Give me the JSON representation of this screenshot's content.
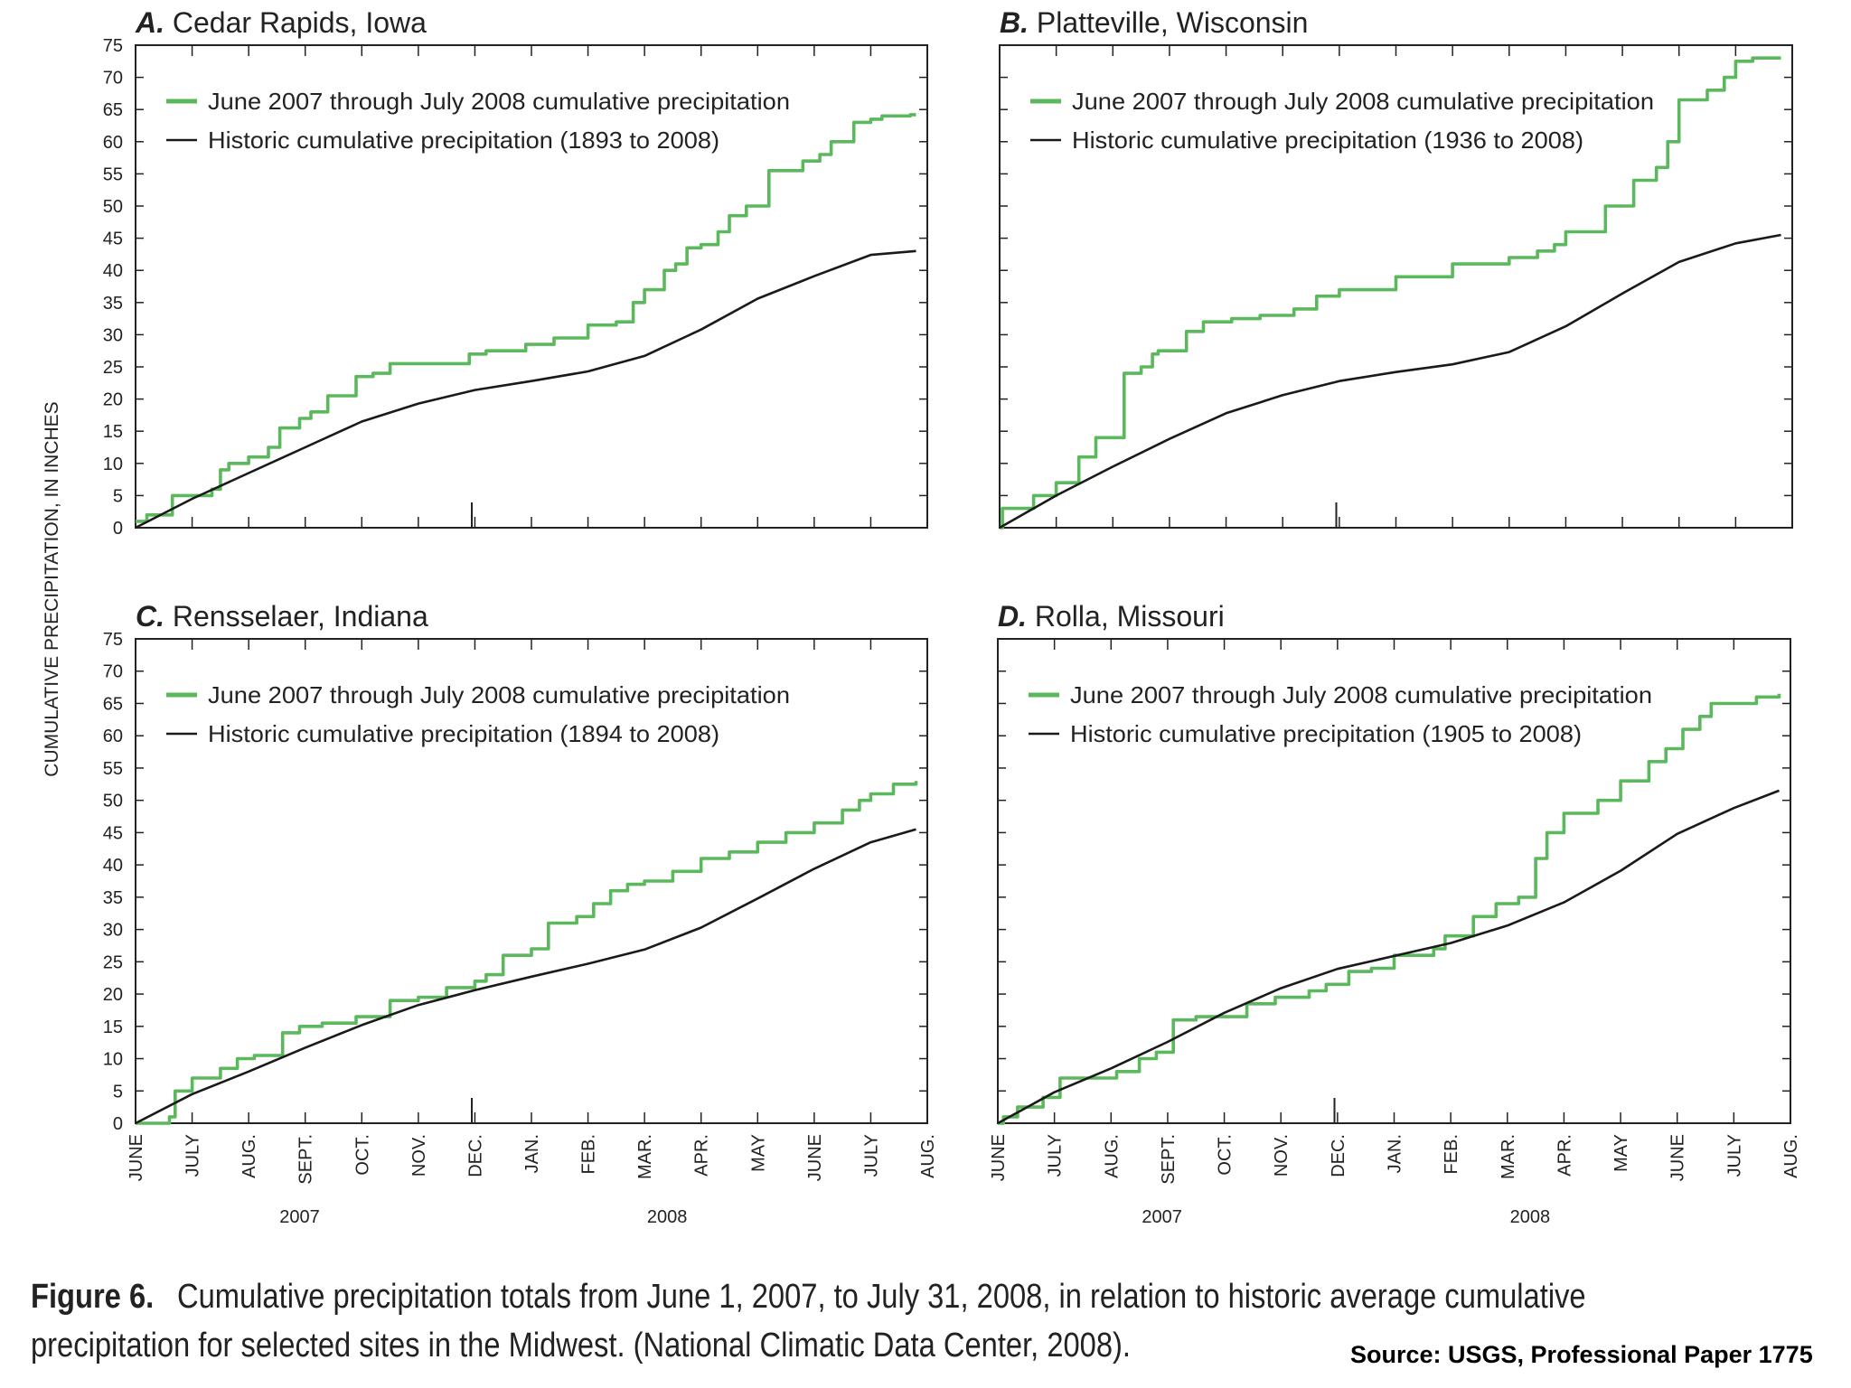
{
  "figure": {
    "caption_label": "Figure 6.",
    "caption_line1": "Cumulative precipitation totals from June 1, 2007, to July 31, 2008, in relation to historic average cumulative",
    "caption_line2": "precipitation for selected sites in the Midwest. (National Climatic Data Center, 2008).",
    "source": "Source: USGS, Professional Paper 1775",
    "ylabel": "CUMULATIVE PRECIPITATION, IN INCHES",
    "colors": {
      "current": "#5cb85c",
      "historic": "#1a1a1a",
      "axis": "#222222"
    }
  },
  "chart_data": [
    {
      "type": "line",
      "panel_letter": "A.",
      "title": "Cedar Rapids, Iowa",
      "ylim": [
        0,
        75
      ],
      "yticks": [
        "0",
        "5",
        "10",
        "15",
        "20",
        "25",
        "30",
        "35",
        "40",
        "45",
        "50",
        "55",
        "60",
        "65",
        "70",
        "75"
      ],
      "x_categories": [
        "JUNE",
        "JULY",
        "AUG.",
        "SEPT.",
        "OCT.",
        "NOV.",
        "DEC.",
        "JAN.",
        "FEB.",
        "MAR.",
        "APR.",
        "MAY",
        "JUNE",
        "JULY",
        "AUG."
      ],
      "years": [
        "2007",
        "2008"
      ],
      "series": [
        {
          "name": "June 2007 through July 2008 cumulative precipitation",
          "style": "step",
          "x": [
            0,
            0.2,
            0.65,
            1.35,
            1.5,
            1.65,
            2,
            2.35,
            2.55,
            2.9,
            3.1,
            3.4,
            3.9,
            4.2,
            4.5,
            5.9,
            6.2,
            6.9,
            7.4,
            8,
            8.5,
            8.8,
            9,
            9.35,
            9.55,
            9.75,
            10,
            10.3,
            10.5,
            10.8,
            11.2,
            11.8,
            12.1,
            12.3,
            12.7,
            13,
            13.2,
            13.7,
            13.8
          ],
          "y": [
            1,
            2,
            5,
            6,
            9,
            10,
            11,
            12.5,
            15.5,
            17,
            18,
            20.5,
            23.5,
            24,
            25.5,
            27,
            27.5,
            28.5,
            29.5,
            31.5,
            32,
            35,
            37,
            40,
            41,
            43.5,
            44,
            46,
            48.5,
            50,
            55.5,
            57,
            58,
            60,
            63,
            63.5,
            64,
            64.2,
            64.2
          ]
        },
        {
          "name": "Historic cumulative precipitation (1893 to 2008)",
          "style": "line",
          "x": [
            0,
            1,
            2,
            3,
            4,
            5,
            6,
            7,
            8,
            9,
            10,
            11,
            12,
            13,
            13.8
          ],
          "y": [
            0,
            4.5,
            8.5,
            12.5,
            16.5,
            19.3,
            21.4,
            22.8,
            24.3,
            26.7,
            30.8,
            35.6,
            39.1,
            42.4,
            43
          ]
        }
      ]
    },
    {
      "type": "line",
      "panel_letter": "B.",
      "title": "Platteville, Wisconsin",
      "ylim": [
        0,
        75
      ],
      "yticks": [
        "0",
        "5",
        "10",
        "15",
        "20",
        "25",
        "30",
        "35",
        "40",
        "45",
        "50",
        "55",
        "60",
        "65",
        "70",
        "75"
      ],
      "x_categories": [
        "JUNE",
        "JULY",
        "AUG.",
        "SEPT.",
        "OCT.",
        "NOV.",
        "DEC.",
        "JAN.",
        "FEB.",
        "MAR.",
        "APR.",
        "MAY",
        "JUNE",
        "JULY",
        "AUG."
      ],
      "years": [
        "2007",
        "2008"
      ],
      "series": [
        {
          "name": "June 2007 through July 2008 cumulative precipitation",
          "style": "step",
          "x": [
            0,
            0.05,
            0.6,
            1,
            1.4,
            1.7,
            2.2,
            2.5,
            2.7,
            2.8,
            3.3,
            3.6,
            4.1,
            4.6,
            5.2,
            5.6,
            6,
            7,
            8,
            9,
            9.5,
            9.8,
            10,
            10.7,
            11.2,
            11.6,
            11.8,
            12,
            12.5,
            12.8,
            13,
            13.3,
            13.8
          ],
          "y": [
            0,
            3,
            5,
            7,
            11,
            14,
            24,
            25,
            27,
            27.5,
            30.5,
            32,
            32.5,
            33,
            34,
            36,
            37,
            39,
            41,
            42,
            43,
            44,
            46,
            50,
            54,
            56,
            60,
            66.5,
            68,
            70,
            72.5,
            73,
            73
          ]
        },
        {
          "name": "Historic cumulative precipitation (1936 to 2008)",
          "style": "line",
          "x": [
            0,
            1,
            2,
            3,
            4,
            5,
            6,
            7,
            8,
            9,
            10,
            11,
            12,
            13,
            13.8
          ],
          "y": [
            0,
            5,
            9.5,
            13.8,
            17.8,
            20.6,
            22.8,
            24.2,
            25.4,
            27.3,
            31.3,
            36.4,
            41.3,
            44.2,
            45.5
          ]
        }
      ]
    },
    {
      "type": "line",
      "panel_letter": "C.",
      "title": "Rensselaer, Indiana",
      "ylim": [
        0,
        75
      ],
      "yticks": [
        "0",
        "5",
        "10",
        "15",
        "20",
        "25",
        "30",
        "35",
        "40",
        "45",
        "50",
        "55",
        "60",
        "65",
        "70",
        "75"
      ],
      "x_categories": [
        "JUNE",
        "JULY",
        "AUG.",
        "SEPT.",
        "OCT.",
        "NOV.",
        "DEC.",
        "JAN.",
        "FEB.",
        "MAR.",
        "APR.",
        "MAY",
        "JUNE",
        "JULY",
        "AUG."
      ],
      "years": [
        "2007",
        "2008"
      ],
      "series": [
        {
          "name": "June 2007 through July 2008 cumulative precipitation",
          "style": "step",
          "x": [
            0,
            0.6,
            0.7,
            1,
            1.5,
            1.8,
            2.1,
            2.6,
            2.9,
            3.3,
            3.9,
            4.5,
            5,
            5.5,
            6,
            6.2,
            6.5,
            7,
            7.3,
            7.8,
            8.1,
            8.4,
            8.7,
            9,
            9.5,
            10,
            10.5,
            11,
            11.5,
            12,
            12.5,
            12.8,
            13,
            13.4,
            13.8
          ],
          "y": [
            0,
            1,
            5,
            7,
            8.5,
            10,
            10.5,
            14,
            15,
            15.5,
            16.5,
            19,
            19.5,
            21,
            22,
            23,
            26,
            27,
            31,
            32,
            34,
            36,
            37,
            37.5,
            39,
            41,
            42,
            43.5,
            45,
            46.5,
            48.5,
            50,
            51,
            52.5,
            53
          ]
        },
        {
          "name": "Historic cumulative precipitation (1894 to 2008)",
          "style": "line",
          "x": [
            0,
            1,
            2,
            3,
            4,
            5,
            6,
            7,
            8,
            9,
            10,
            11,
            12,
            13,
            13.8
          ],
          "y": [
            0,
            4.5,
            8,
            11.7,
            15.2,
            18.3,
            20.6,
            22.7,
            24.7,
            26.9,
            30.3,
            34.8,
            39.4,
            43.5,
            45.5
          ]
        }
      ]
    },
    {
      "type": "line",
      "panel_letter": "D.",
      "title": "Rolla, Missouri",
      "ylim": [
        0,
        75
      ],
      "yticks": [
        "0",
        "5",
        "10",
        "15",
        "20",
        "25",
        "30",
        "35",
        "40",
        "45",
        "50",
        "55",
        "60",
        "65",
        "70",
        "75"
      ],
      "x_categories": [
        "JUNE",
        "JULY",
        "AUG.",
        "SEPT.",
        "OCT.",
        "NOV.",
        "DEC.",
        "JAN.",
        "FEB.",
        "MAR.",
        "APR.",
        "MAY",
        "JUNE",
        "JULY",
        "AUG."
      ],
      "years": [
        "2007",
        "2008"
      ],
      "series": [
        {
          "name": "June 2007 through July 2008 cumulative precipitation",
          "style": "step",
          "x": [
            0,
            0.1,
            0.35,
            0.8,
            1.1,
            2.1,
            2.5,
            2.8,
            3.1,
            3.5,
            4.4,
            4.9,
            5.5,
            5.8,
            6.2,
            6.6,
            7,
            7.7,
            7.9,
            8.4,
            8.8,
            9.2,
            9.5,
            9.7,
            10,
            10.6,
            11,
            11.5,
            11.8,
            12.1,
            12.4,
            12.6,
            13.4,
            13.8
          ],
          "y": [
            0,
            1,
            2.5,
            4,
            7,
            8,
            10,
            11,
            16,
            16.5,
            18.5,
            19.5,
            20.5,
            21.5,
            23.5,
            24,
            26,
            27,
            29,
            32,
            34,
            35,
            41,
            45,
            48,
            50,
            53,
            56,
            58,
            61,
            63,
            65,
            66,
            66.5
          ]
        },
        {
          "name": "Historic cumulative precipitation (1905 to 2008)",
          "style": "line",
          "x": [
            0,
            1,
            2,
            3,
            4,
            5,
            6,
            7,
            8,
            9,
            10,
            11,
            12,
            13,
            13.8
          ],
          "y": [
            0,
            4.8,
            8.5,
            12.6,
            17.1,
            20.9,
            23.9,
            25.9,
            27.9,
            30.6,
            34.2,
            39.1,
            44.8,
            48.8,
            51.5
          ]
        }
      ]
    }
  ]
}
